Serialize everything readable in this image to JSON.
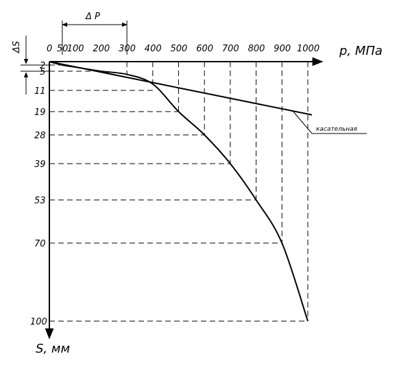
{
  "chart_data": {
    "type": "line",
    "x_axis_label": "p, МПа",
    "y_axis_label": "S, мм",
    "x_ticks": [
      0,
      50,
      100,
      200,
      300,
      400,
      500,
      600,
      700,
      800,
      900,
      1000
    ],
    "y_ticks": [
      2,
      5,
      11,
      19,
      28,
      39,
      53,
      70,
      100
    ],
    "delta_p_label": "Δ P",
    "delta_s_label": "ΔS",
    "tangent_label": "касательная",
    "series": [
      {
        "x": [
          0,
          50,
          100,
          200,
          300,
          400,
          500,
          600,
          700,
          800,
          900,
          1000
        ],
        "y": [
          0,
          2,
          3,
          5,
          6,
          9,
          19,
          28,
          39,
          53,
          70,
          100
        ]
      }
    ],
    "tangent": {
      "x": [
        0,
        1000
      ],
      "y": [
        0,
        20
      ]
    },
    "xlim": [
      0,
      1000
    ],
    "ylim": [
      0,
      100
    ],
    "grid": "dashed guide lines to each point"
  }
}
